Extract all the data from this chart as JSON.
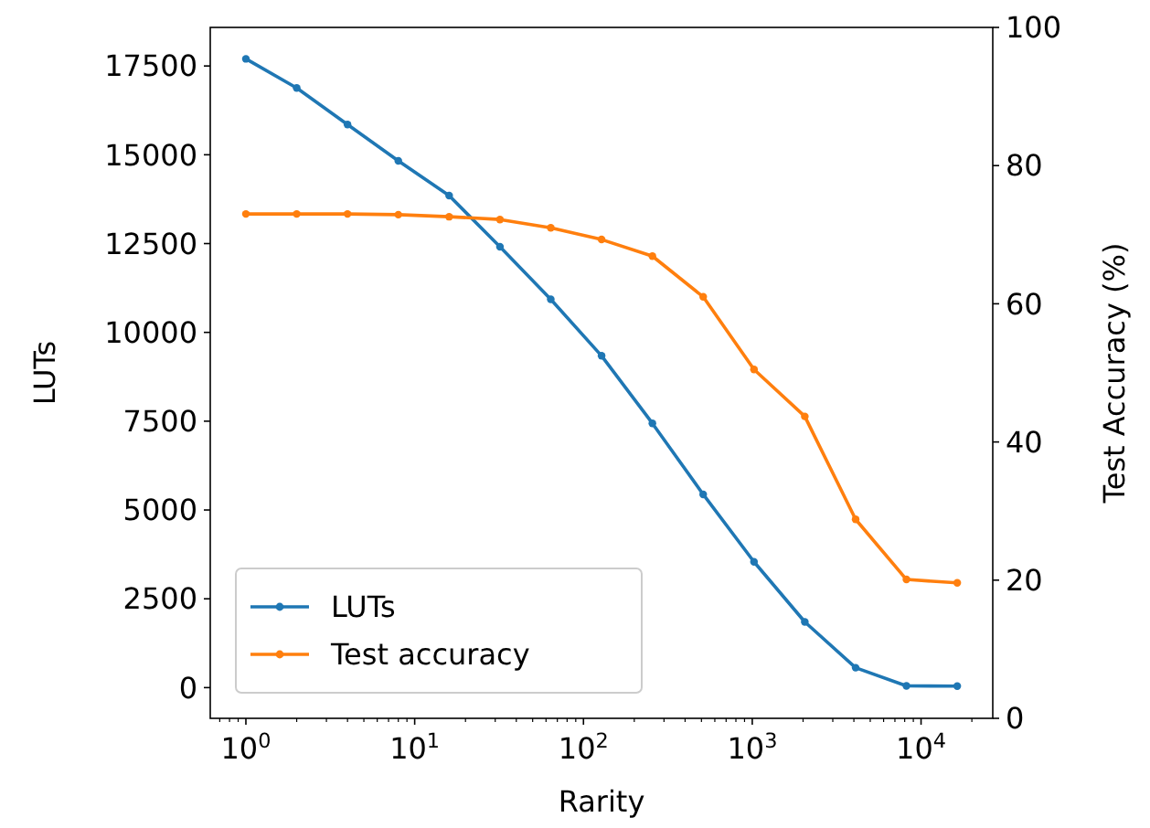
{
  "chart_data": {
    "type": "line",
    "xlabel": "Rarity",
    "ylabel": "LUTs",
    "y2label": "Test Accuracy (%)",
    "x": [
      1,
      2,
      4,
      8,
      16,
      32,
      64,
      128,
      256,
      512,
      1024,
      2048,
      4096,
      8192,
      16384
    ],
    "series": [
      {
        "name": "LUTs",
        "color": "#1f77b4",
        "values": [
          17700,
          16880,
          15850,
          14830,
          13850,
          12410,
          10930,
          9340,
          7440,
          5440,
          3540,
          1850,
          560,
          50,
          40
        ]
      },
      {
        "name": "Test accuracy",
        "color": "#ff7f0e",
        "axis": "y2",
        "values": [
          73.0,
          73.0,
          73.0,
          72.9,
          72.6,
          72.2,
          71.0,
          69.3,
          66.9,
          61.0,
          50.5,
          43.7,
          28.8,
          20.1,
          19.6
        ]
      }
    ],
    "log": "x",
    "xlim": [
      0.615,
      26600
    ],
    "xticks": [
      {
        "value": 0.7,
        "label": null
      },
      {
        "value": 0.8,
        "label": null
      },
      {
        "value": 0.9,
        "label": null
      },
      {
        "value": 1,
        "label": "10$^{0}$"
      },
      {
        "value": 2,
        "label": null
      },
      {
        "value": 3,
        "label": null
      },
      {
        "value": 4,
        "label": null
      },
      {
        "value": 5,
        "label": null
      },
      {
        "value": 6,
        "label": null
      },
      {
        "value": 7,
        "label": null
      },
      {
        "value": 8,
        "label": null
      },
      {
        "value": 9,
        "label": null
      },
      {
        "value": 10,
        "label": "10$^{1}$"
      },
      {
        "value": 20,
        "label": null
      },
      {
        "value": 30,
        "label": null
      },
      {
        "value": 40,
        "label": null
      },
      {
        "value": 50,
        "label": null
      },
      {
        "value": 60,
        "label": null
      },
      {
        "value": 70,
        "label": null
      },
      {
        "value": 80,
        "label": null
      },
      {
        "value": 90,
        "label": null
      },
      {
        "value": 100,
        "label": "10$^{2}$"
      },
      {
        "value": 200,
        "label": null
      },
      {
        "value": 300,
        "label": null
      },
      {
        "value": 400,
        "label": null
      },
      {
        "value": 500,
        "label": null
      },
      {
        "value": 600,
        "label": null
      },
      {
        "value": 700,
        "label": null
      },
      {
        "value": 800,
        "label": null
      },
      {
        "value": 900,
        "label": null
      },
      {
        "value": 1000,
        "label": "10$^{3}$"
      },
      {
        "value": 2000,
        "label": null
      },
      {
        "value": 3000,
        "label": null
      },
      {
        "value": 4000,
        "label": null
      },
      {
        "value": 5000,
        "label": null
      },
      {
        "value": 6000,
        "label": null
      },
      {
        "value": 7000,
        "label": null
      },
      {
        "value": 8000,
        "label": null
      },
      {
        "value": 9000,
        "label": null
      },
      {
        "value": 10000,
        "label": "10$^{4}$"
      },
      {
        "value": 20000,
        "label": null
      }
    ],
    "ylim": [
      -865,
      18585
    ],
    "yticks": [
      0,
      2500,
      5000,
      7500,
      10000,
      12500,
      15000,
      17500
    ],
    "y2lim": [
      0,
      100
    ],
    "y2ticks": [
      0,
      20,
      40,
      60,
      80,
      100
    ],
    "legend": "bottom left",
    "marker": "circle",
    "line_style": "solid"
  }
}
